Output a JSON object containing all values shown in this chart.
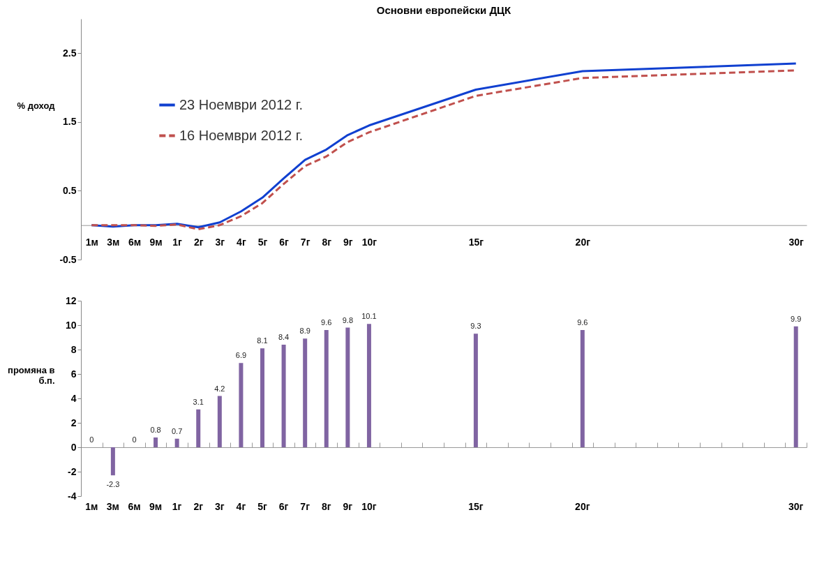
{
  "chart_data": [
    {
      "type": "line",
      "title": "Основни европейски ДЦК",
      "ylabel": "% доход",
      "categories": [
        "1м",
        "3м",
        "6м",
        "9м",
        "1г",
        "2г",
        "3г",
        "4г",
        "5г",
        "6г",
        "7г",
        "8г",
        "9г",
        "10г",
        null,
        null,
        null,
        null,
        "15г",
        null,
        null,
        null,
        null,
        "20г",
        null,
        null,
        null,
        null,
        null,
        null,
        null,
        null,
        null,
        "30г"
      ],
      "series": [
        {
          "name": "23 Ноември 2012 г.",
          "color": "#1040d0",
          "line_style": "solid",
          "values": [
            0,
            -0.02,
            0,
            0,
            0.02,
            -0.03,
            0.04,
            0.2,
            0.4,
            0.68,
            0.95,
            1.1,
            1.31,
            1.45,
            null,
            null,
            null,
            null,
            1.97,
            null,
            null,
            null,
            null,
            2.24,
            null,
            null,
            null,
            null,
            null,
            null,
            null,
            null,
            null,
            2.35
          ]
        },
        {
          "name": "16 Ноември 2012 г.",
          "color": "#c0504d",
          "line_style": "dashed",
          "values": [
            0,
            0,
            0,
            -0.01,
            0.01,
            -0.06,
            0,
            0.13,
            0.32,
            0.6,
            0.86,
            1.0,
            1.21,
            1.35,
            null,
            null,
            null,
            null,
            1.88,
            null,
            null,
            null,
            null,
            2.14,
            null,
            null,
            null,
            null,
            null,
            null,
            null,
            null,
            null,
            2.25
          ]
        }
      ],
      "ylim": [
        -0.5,
        3.0
      ],
      "yticks": [
        -0.5,
        0.5,
        1.5,
        2.5
      ],
      "legend": "top left"
    },
    {
      "type": "bar",
      "ylabel": "промяна в б.п.",
      "categories": [
        "1м",
        "3м",
        "6м",
        "9м",
        "1г",
        "2г",
        "3г",
        "4г",
        "5г",
        "6г",
        "7г",
        "8г",
        "9г",
        "10г",
        null,
        null,
        null,
        null,
        "15г",
        null,
        null,
        null,
        null,
        "20г",
        null,
        null,
        null,
        null,
        null,
        null,
        null,
        null,
        null,
        "30г"
      ],
      "values": [
        0,
        -2.3,
        0,
        0.8,
        0.7,
        3.1,
        4.2,
        6.9,
        8.1,
        8.4,
        8.9,
        9.6,
        9.8,
        10.1,
        null,
        null,
        null,
        null,
        9.3,
        null,
        null,
        null,
        null,
        9.6,
        null,
        null,
        null,
        null,
        null,
        null,
        null,
        null,
        null,
        9.9
      ],
      "color": "#8064a2",
      "ylim": [
        -4,
        12
      ],
      "yticks": [
        -4,
        -2,
        0,
        2,
        4,
        6,
        8,
        10,
        12
      ],
      "data_labels": true
    }
  ]
}
